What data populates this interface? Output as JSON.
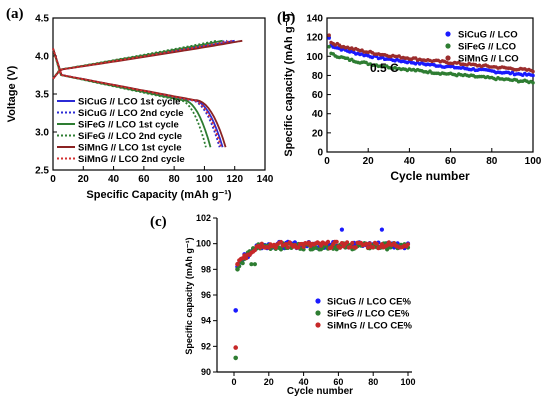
{
  "chart_data": [
    {
      "panel": "(a)",
      "type": "line",
      "xlabel": "Specific Capacity (mAh g⁻¹)",
      "ylabel": "Voltage (V)",
      "xlim": [
        0,
        140
      ],
      "ylim": [
        2.5,
        4.5
      ],
      "xticks": [
        "0",
        "20",
        "40",
        "60",
        "80",
        "100",
        "120",
        "140"
      ],
      "yticks": [
        "2.5",
        "3.0",
        "3.5",
        "4.0",
        "4.5"
      ],
      "legend": "left, lower-middle",
      "grid": false,
      "series": [
        {
          "name": "SiCuG // LCO 1st cycle",
          "color": "#2b2bd6",
          "dash": "solid",
          "charge_end": 120,
          "discharge_end": 112
        },
        {
          "name": "SiCuG // LCO 2nd cycle",
          "color": "#2b2bd6",
          "dash": "dotted",
          "charge_end": 115,
          "discharge_end": 110
        },
        {
          "name": "SiFeG // LCO 1st cycle",
          "color": "#2e7d32",
          "dash": "solid",
          "charge_end": 112,
          "discharge_end": 104
        },
        {
          "name": "SiFeG // LCO 2nd cycle",
          "color": "#2e7d32",
          "dash": "dotted",
          "charge_end": 108,
          "discharge_end": 101
        },
        {
          "name": "SiMnG // LCO 1st cycle",
          "color": "#8b2323",
          "dash": "solid",
          "charge_end": 125,
          "discharge_end": 114
        },
        {
          "name": "SiMnG // LCO 2nd cycle",
          "color": "#d32f2f",
          "dash": "dotted",
          "charge_end": 118,
          "discharge_end": 111
        }
      ]
    },
    {
      "panel": "(b)",
      "type": "scatter",
      "xlabel": "Cycle number",
      "ylabel": "Specific capacity (mAh g⁻¹)",
      "xlim": [
        0,
        100
      ],
      "ylim": [
        0,
        140
      ],
      "xticks": [
        "0",
        "20",
        "40",
        "60",
        "80",
        "100"
      ],
      "yticks": [
        "0",
        "20",
        "40",
        "60",
        "80",
        "100",
        "120",
        "140"
      ],
      "annotation": "0.5 C",
      "legend": "top-right",
      "grid": false,
      "series": [
        {
          "name": "SiCuG // LCO",
          "color": "#1a1aff",
          "start": 113,
          "end": 80
        },
        {
          "name": "SiFeG // LCO",
          "color": "#2e7d32",
          "start": 104,
          "end": 73
        },
        {
          "name": "SiMnG // LCO",
          "color": "#9b2d2d",
          "start": 116,
          "end": 85
        }
      ]
    },
    {
      "panel": "(c)",
      "type": "scatter",
      "xlabel": "Cycle number",
      "ylabel": "Specific capacity (mAh g⁻¹)",
      "xlim": [
        0,
        100
      ],
      "ylim": [
        90,
        102
      ],
      "xticks": [
        "0",
        "20",
        "40",
        "60",
        "80",
        "100"
      ],
      "yticks": [
        "90",
        "92",
        "94",
        "96",
        "98",
        "100",
        "102"
      ],
      "legend": "right, lower-middle",
      "grid": false,
      "series": [
        {
          "name": "SiCuG // LCO CE%",
          "color": "#1a1aff",
          "first": [
            1,
            94.8
          ],
          "second": [
            2,
            98.2
          ],
          "plateau": 99.9
        },
        {
          "name": "SiFeG // LCO CE%",
          "color": "#2e7d32",
          "first": [
            1,
            91.1
          ],
          "second": [
            2,
            98.0
          ],
          "plateau": 99.8
        },
        {
          "name": "SiMnG // LCO CE%",
          "color": "#c62828",
          "first": [
            1,
            91.9
          ],
          "second": [
            2,
            98.4
          ],
          "plateau": 99.9
        }
      ]
    }
  ]
}
